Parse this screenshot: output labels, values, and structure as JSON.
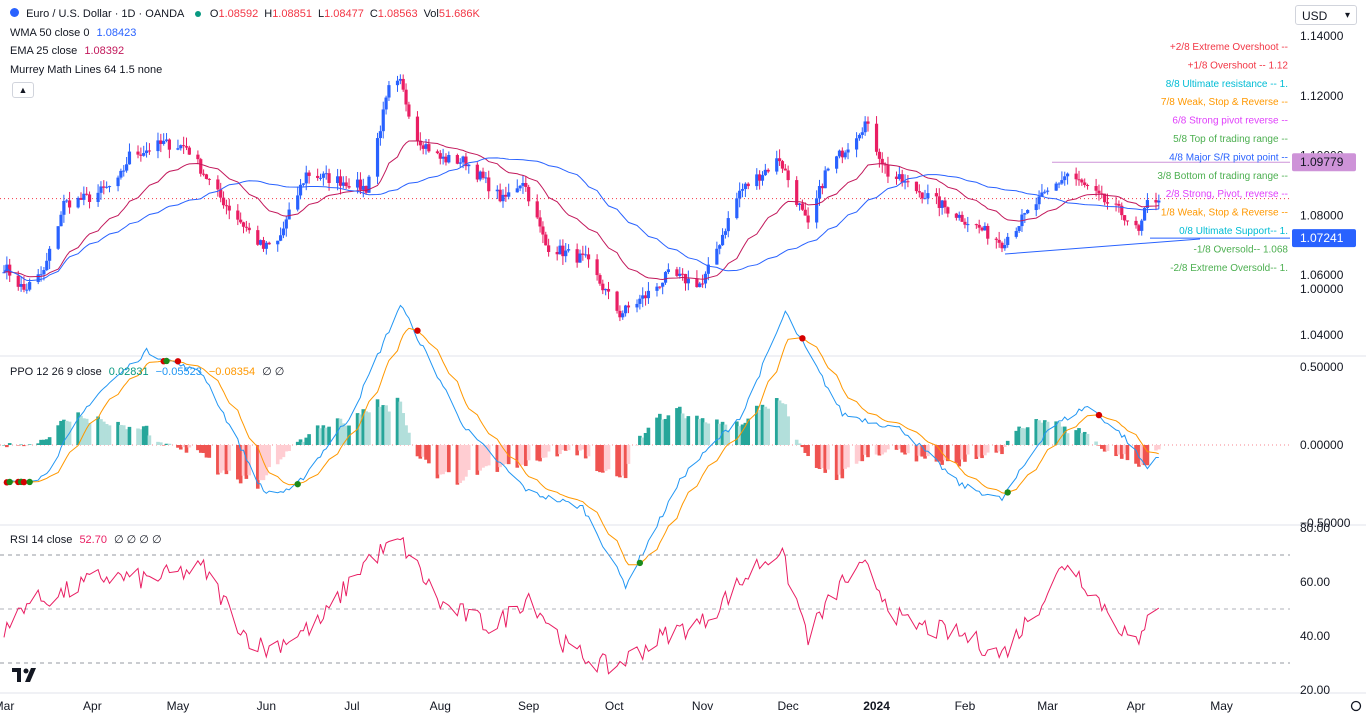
{
  "header": {
    "symbol": "Euro / U.S. Dollar · 1D · OANDA",
    "ohlc": [
      {
        "k": "O",
        "v": "1.08592"
      },
      {
        "k": "H",
        "v": "1.08851"
      },
      {
        "k": "L",
        "v": "1.08477"
      },
      {
        "k": "C",
        "v": "1.08563"
      },
      {
        "k": "Vol",
        "v": "51.686K"
      }
    ],
    "currency": "USD",
    "collapse_icon": "chevron-up-icon"
  },
  "indicators": [
    {
      "label": "WMA 50 close 0",
      "value": "1.08423",
      "color": "#2962ff"
    },
    {
      "label": "EMA 25 close",
      "value": "1.08392",
      "color": "#c2185b"
    },
    {
      "label": "Murrey Math Lines 64 1.5 none",
      "value": ""
    }
  ],
  "price_axis": [
    "1.14000",
    "1.12000",
    "1.10000",
    "1.08000",
    "1.06000",
    "1.04000"
  ],
  "price_badges": [
    {
      "value": "1.09779",
      "bg": "#ce93d8",
      "fg": "#131722"
    },
    {
      "value": "1.07241",
      "bg": "#2962ff",
      "fg": "#ffffff"
    }
  ],
  "murrey_labels": [
    {
      "text": "+2/8 Extreme Overshoot --",
      "color": "#f23645"
    },
    {
      "text": "+1/8 Overshoot --  1.12",
      "color": "#f23645"
    },
    {
      "text": "8/8 Ultimate resistance --  1.",
      "color": "#00bcd4"
    },
    {
      "text": "7/8 Weak, Stop & Reverse --",
      "color": "#ff9800"
    },
    {
      "text": "6/8 Strong pivot reverse --",
      "color": "#e040fb"
    },
    {
      "text": "5/8 Top of trading range --",
      "color": "#4caf50"
    },
    {
      "text": "4/8 Major S/R pivot point --",
      "color": "#2962ff"
    },
    {
      "text": "3/8 Bottom of trading range --",
      "color": "#4caf50"
    },
    {
      "text": "2/8 Strong, Pivot, reverse --",
      "color": "#e040fb"
    },
    {
      "text": "1/8 Weak, Stop & Reverse --",
      "color": "#ff9800"
    },
    {
      "text": "0/8 Ultimate Support--  1.",
      "color": "#00bcd4"
    },
    {
      "text": "-1/8 Oversold--  1.068",
      "color": "#4caf50"
    },
    {
      "text": "-2/8 Extreme Oversold--  1.",
      "color": "#4caf50"
    }
  ],
  "ppo": {
    "label": "PPO 12 26 9 close",
    "values": [
      {
        "v": "0.02831",
        "color": "#089981"
      },
      {
        "v": "−0.05523",
        "color": "#2196f3"
      },
      {
        "v": "−0.08354",
        "color": "#ff9800"
      }
    ],
    "extra": "∅ ∅",
    "axis": [
      "1.00000",
      "0.50000",
      "0.00000",
      "−0.50000"
    ]
  },
  "rsi": {
    "label": "RSI 14 close",
    "value": "52.70",
    "extra": "∅ ∅ ∅ ∅",
    "axis": [
      "80.00",
      "60.00",
      "40.00",
      "20.00"
    ]
  },
  "time_axis": [
    "Mar",
    "Apr",
    "May",
    "Jun",
    "Jul",
    "Aug",
    "Sep",
    "Oct",
    "Nov",
    "Dec",
    "2024",
    "Feb",
    "Mar",
    "Apr",
    "May"
  ],
  "chart_data": {
    "type": "candlestick",
    "title": "Euro / U.S. Dollar · 1D · OANDA",
    "ylim": [
      1.035,
      1.142
    ],
    "xlim": [
      "2023-03-01",
      "2024-05-25"
    ],
    "last_close": 1.08563,
    "close_path": [
      [
        "2023-03-01",
        1.063
      ],
      [
        "2023-03-08",
        1.055
      ],
      [
        "2023-03-15",
        1.061
      ],
      [
        "2023-03-22",
        1.084
      ],
      [
        "2023-03-31",
        1.086
      ],
      [
        "2023-04-10",
        1.091
      ],
      [
        "2023-04-14",
        1.1
      ],
      [
        "2023-04-26",
        1.104
      ],
      [
        "2023-05-04",
        1.103
      ],
      [
        "2023-05-15",
        1.087
      ],
      [
        "2023-05-31",
        1.069
      ],
      [
        "2023-06-05",
        1.071
      ],
      [
        "2023-06-15",
        1.094
      ],
      [
        "2023-06-30",
        1.091
      ],
      [
        "2023-07-06",
        1.089
      ],
      [
        "2023-07-14",
        1.122
      ],
      [
        "2023-07-18",
        1.124
      ],
      [
        "2023-07-24",
        1.106
      ],
      [
        "2023-08-01",
        1.099
      ],
      [
        "2023-08-10",
        1.098
      ],
      [
        "2023-08-23",
        1.085
      ],
      [
        "2023-08-30",
        1.092
      ],
      [
        "2023-09-07",
        1.07
      ],
      [
        "2023-09-21",
        1.065
      ],
      [
        "2023-10-03",
        1.047
      ],
      [
        "2023-10-12",
        1.053
      ],
      [
        "2023-10-20",
        1.06
      ],
      [
        "2023-11-01",
        1.057
      ],
      [
        "2023-11-14",
        1.088
      ],
      [
        "2023-11-28",
        1.099
      ],
      [
        "2023-12-08",
        1.076
      ],
      [
        "2023-12-14",
        1.094
      ],
      [
        "2023-12-28",
        1.111
      ],
      [
        "2024-01-05",
        1.094
      ],
      [
        "2024-01-16",
        1.088
      ],
      [
        "2024-02-02",
        1.078
      ],
      [
        "2024-02-14",
        1.071
      ],
      [
        "2024-02-26",
        1.084
      ],
      [
        "2024-03-08",
        1.094
      ],
      [
        "2024-03-19",
        1.086
      ],
      [
        "2024-03-28",
        1.08
      ],
      [
        "2024-04-02",
        1.074
      ],
      [
        "2024-04-05",
        1.084
      ],
      [
        "2024-04-09",
        1.086
      ]
    ],
    "ppo_path": [
      [
        "2023-03-01",
        -0.25
      ],
      [
        "2023-03-15",
        -0.2
      ],
      [
        "2023-04-01",
        0.3
      ],
      [
        "2023-04-20",
        0.6
      ],
      [
        "2023-05-10",
        0.45
      ],
      [
        "2023-05-31",
        -0.3
      ],
      [
        "2023-06-10",
        -0.3
      ],
      [
        "2023-07-01",
        0.2
      ],
      [
        "2023-07-18",
        0.9
      ],
      [
        "2023-08-10",
        0.1
      ],
      [
        "2023-09-01",
        -0.3
      ],
      [
        "2023-09-20",
        -0.4
      ],
      [
        "2023-10-05",
        -0.9
      ],
      [
        "2023-10-25",
        -0.2
      ],
      [
        "2023-11-15",
        0.2
      ],
      [
        "2023-11-30",
        0.85
      ],
      [
        "2023-12-20",
        0.2
      ],
      [
        "2024-01-10",
        0.1
      ],
      [
        "2024-01-30",
        -0.25
      ],
      [
        "2024-02-14",
        -0.35
      ],
      [
        "2024-03-01",
        0.1
      ],
      [
        "2024-03-15",
        0.25
      ],
      [
        "2024-03-28",
        0.05
      ],
      [
        "2024-04-05",
        -0.15
      ],
      [
        "2024-04-09",
        -0.06
      ]
    ],
    "rsi_path": [
      [
        "2023-03-01",
        40
      ],
      [
        "2023-03-08",
        52
      ],
      [
        "2023-03-20",
        55
      ],
      [
        "2023-04-04",
        62
      ],
      [
        "2023-04-20",
        61
      ],
      [
        "2023-05-10",
        65
      ],
      [
        "2023-05-25",
        40
      ],
      [
        "2023-06-01",
        35
      ],
      [
        "2023-06-20",
        45
      ],
      [
        "2023-07-06",
        68
      ],
      [
        "2023-07-18",
        75
      ],
      [
        "2023-08-01",
        52
      ],
      [
        "2023-08-20",
        43
      ],
      [
        "2023-09-01",
        55
      ],
      [
        "2023-09-15",
        35
      ],
      [
        "2023-09-30",
        28
      ],
      [
        "2023-10-20",
        41
      ],
      [
        "2023-11-01",
        45
      ],
      [
        "2023-11-20",
        66
      ],
      [
        "2023-11-28",
        72
      ],
      [
        "2023-12-08",
        40
      ],
      [
        "2023-12-20",
        60
      ],
      [
        "2023-12-28",
        65
      ],
      [
        "2024-01-10",
        45
      ],
      [
        "2024-02-01",
        40
      ],
      [
        "2024-02-14",
        33
      ],
      [
        "2024-02-26",
        50
      ],
      [
        "2024-03-08",
        68
      ],
      [
        "2024-03-20",
        52
      ],
      [
        "2024-04-02",
        35
      ],
      [
        "2024-04-05",
        50
      ],
      [
        "2024-04-09",
        52.7
      ]
    ]
  }
}
